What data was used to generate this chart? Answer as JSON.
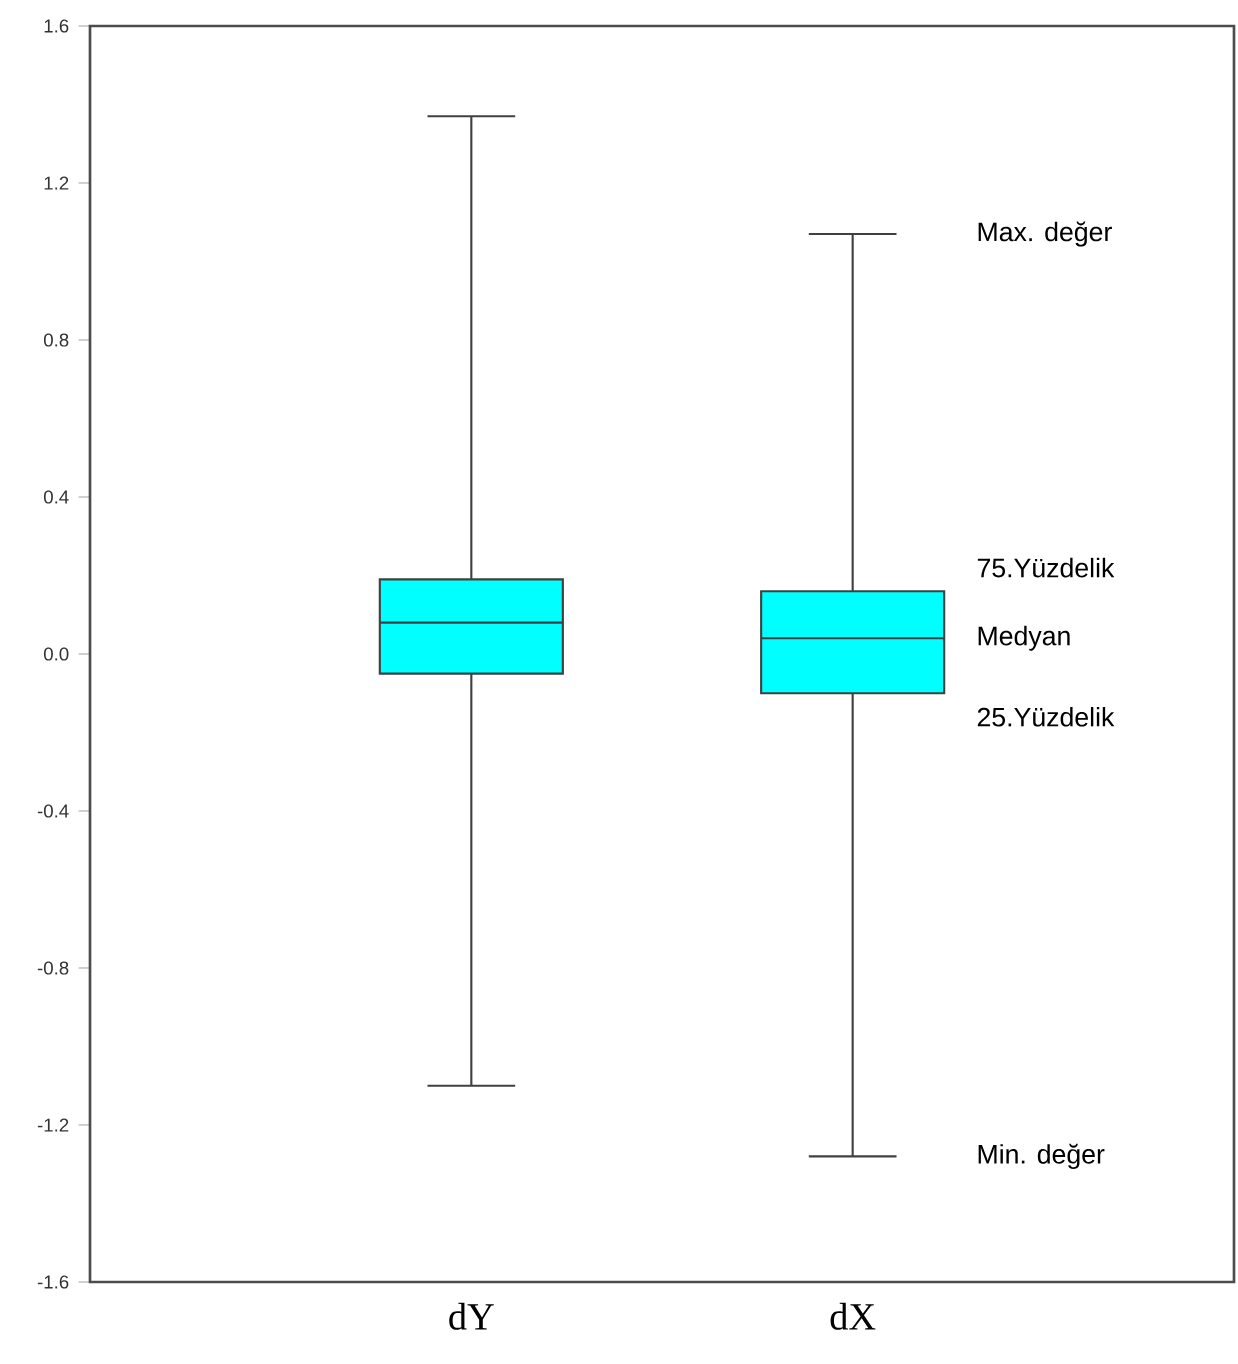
{
  "chart_data": {
    "type": "box",
    "categories": [
      "dY",
      "dX"
    ],
    "boxes": [
      {
        "low": -1.1,
        "q1": -0.05,
        "median": 0.08,
        "q3": 0.19,
        "high": 1.37
      },
      {
        "low": -1.28,
        "q1": -0.1,
        "median": 0.04,
        "q3": 0.16,
        "high": 1.07
      }
    ],
    "color": "#00ffff",
    "ylim": [
      -1.6,
      1.6
    ],
    "yticks": [
      -1.6,
      -1.2,
      -0.8,
      -0.4,
      {
        "value": 0,
        "label": "0.0"
      },
      0.4,
      0.8,
      1.2,
      1.6
    ],
    "annotations": [
      "Max. değer",
      "75.Yüzdelik",
      "Medyan",
      "25.Yüzdelik",
      "Min. değer"
    ],
    "grid": false
  }
}
